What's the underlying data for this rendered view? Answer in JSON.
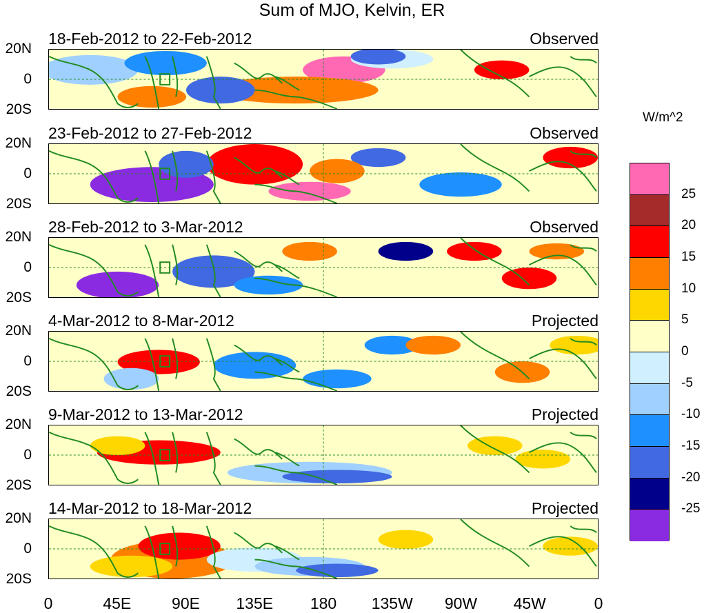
{
  "title": "Sum of MJO, Kelvin, ER",
  "units": "W/m^2",
  "panels": [
    {
      "date": "18-Feb-2012 to 22-Feb-2012",
      "status": "Observed"
    },
    {
      "date": "23-Feb-2012 to 27-Feb-2012",
      "status": "Observed"
    },
    {
      "date": "28-Feb-2012 to 3-Mar-2012",
      "status": "Observed"
    },
    {
      "date": "4-Mar-2012 to 8-Mar-2012",
      "status": "Projected"
    },
    {
      "date": "9-Mar-2012 to 13-Mar-2012",
      "status": "Projected"
    },
    {
      "date": "14-Mar-2012 to 18-Mar-2012",
      "status": "Projected"
    }
  ],
  "y_labels": [
    "20N",
    "0",
    "20S"
  ],
  "x_labels": [
    "0",
    "45E",
    "90E",
    "135E",
    "180",
    "135W",
    "90W",
    "45W",
    "0"
  ],
  "legend": {
    "colors": [
      "#ff69b4",
      "#a52a2a",
      "#ff0000",
      "#ff7f00",
      "#ffd700",
      "#ffffc8",
      "#d0f0ff",
      "#a0d0ff",
      "#1e90ff",
      "#4169e1",
      "#00008b",
      "#8a2be2"
    ],
    "labels": [
      "25",
      "20",
      "15",
      "10",
      "5",
      "0",
      "-5",
      "-10",
      "-15",
      "-20",
      "-25"
    ]
  },
  "colors": {
    "coastline": "#228b22",
    "box": "#228b22"
  }
}
